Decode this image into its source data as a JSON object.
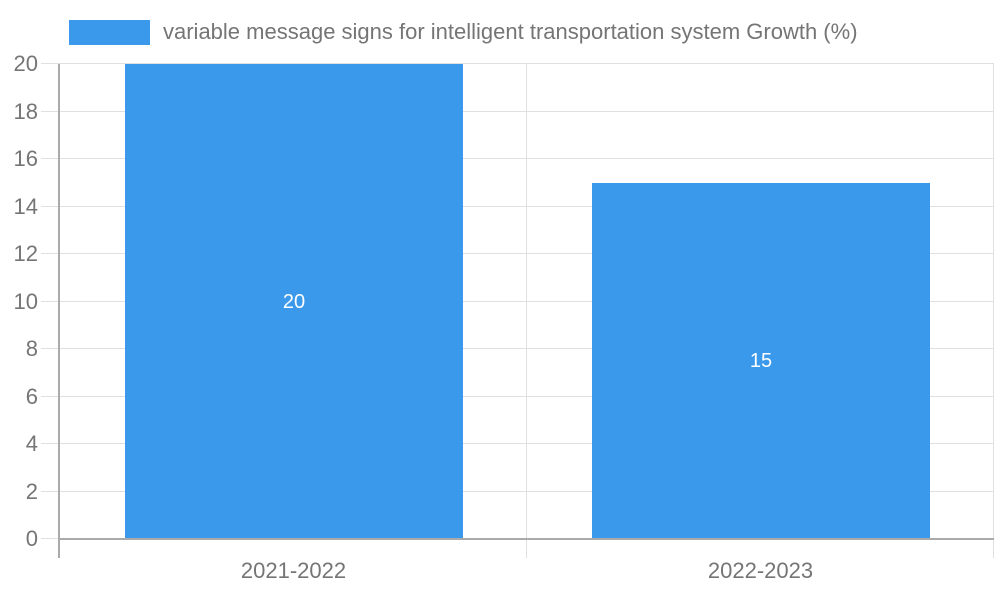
{
  "chart_data": {
    "type": "bar",
    "title": "",
    "legend": "variable message signs for intelligent transportation system Growth (%)",
    "legend_position": "top-left",
    "categories": [
      "2021-2022",
      "2022-2023"
    ],
    "values": [
      20,
      15
    ],
    "data_labels": [
      "20",
      "15"
    ],
    "xlabel": "",
    "ylabel": "",
    "ylim": [
      0,
      20
    ],
    "yticks": [
      0,
      2,
      4,
      6,
      8,
      10,
      12,
      14,
      16,
      18,
      20
    ],
    "grid": true,
    "colors": {
      "bar": "#3b99ec",
      "text": "#757575",
      "grid": "#e0e0e0",
      "axis": "#aaaaaa",
      "data_label": "#ffffff",
      "background": "#ffffff"
    }
  }
}
